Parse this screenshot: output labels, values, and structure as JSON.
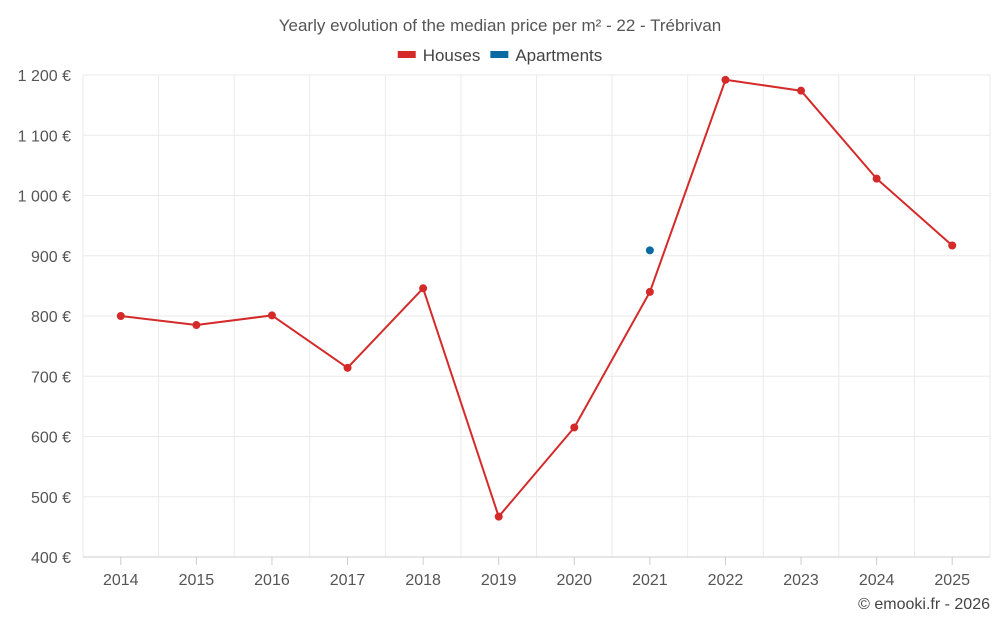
{
  "chart_data": {
    "type": "line",
    "title": "Yearly evolution of the median price per m² - 22 - Trébrivan",
    "xlabel": "",
    "ylabel": "",
    "categories": [
      "2014",
      "2015",
      "2016",
      "2017",
      "2018",
      "2019",
      "2020",
      "2021",
      "2022",
      "2023",
      "2024",
      "2025"
    ],
    "ylim": [
      400,
      1200
    ],
    "yticks": [
      400,
      500,
      600,
      700,
      800,
      900,
      1000,
      1100,
      1200
    ],
    "ytick_labels": [
      "400 €",
      "500 €",
      "600 €",
      "700 €",
      "800 €",
      "900 €",
      "1 000 €",
      "1 100 €",
      "1 200 €"
    ],
    "grid": true,
    "legend_position": "top-center",
    "series": [
      {
        "name": "Houses",
        "color": "#d42a2a",
        "values": [
          800,
          785,
          801,
          714,
          846,
          467,
          615,
          840,
          1192,
          1174,
          1028,
          917
        ]
      },
      {
        "name": "Apartments",
        "color": "#0a6aa1",
        "values": [
          null,
          null,
          null,
          null,
          null,
          null,
          null,
          909,
          null,
          null,
          null,
          null
        ]
      }
    ]
  },
  "credit": "© emooki.fr - 2026"
}
